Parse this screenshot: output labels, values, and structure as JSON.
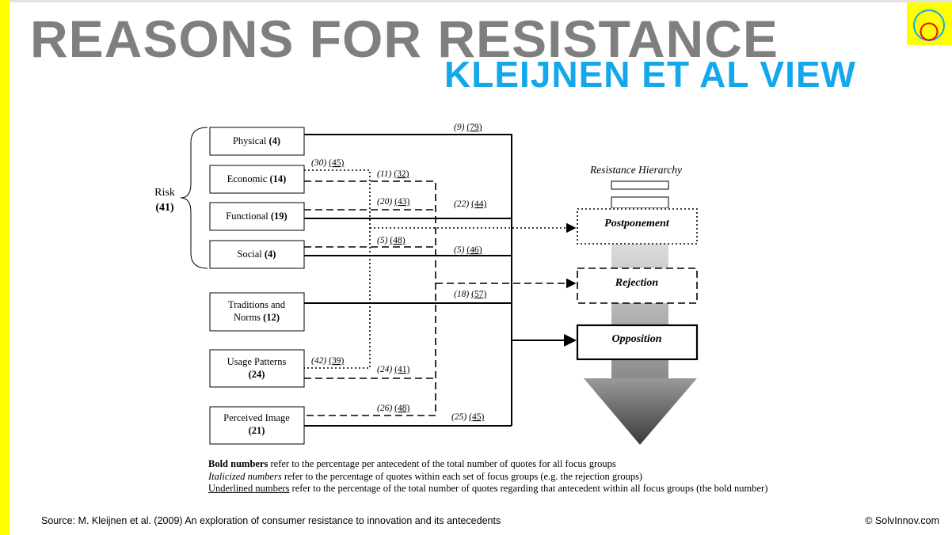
{
  "title": "REASONS FOR RESISTANCE",
  "subtitle": "KLEIJNEN ET AL VIEW",
  "colors": {
    "title": "#7f7f7f",
    "subtitle": "#13a8ec",
    "accent_bar": "#ffff00",
    "logo_outer": "#13a8ec",
    "logo_inner": "#ff0000"
  },
  "logo_icon": "concentric-circles-logo",
  "diagram": {
    "risk_label": "Risk",
    "risk_value": "(41)",
    "antecedents": [
      {
        "name": "Physical",
        "value": "(4)"
      },
      {
        "name": "Economic",
        "value": "(14)"
      },
      {
        "name": "Functional",
        "value": "(19)"
      },
      {
        "name": "Social",
        "value": "(4)"
      },
      {
        "name": "Traditions and",
        "name2": "Norms",
        "value": "(12)"
      },
      {
        "name": "Usage Patterns",
        "value": "(24)"
      },
      {
        "name": "Perceived Image",
        "value": "(21)"
      }
    ],
    "links": [
      {
        "italic": "(9)",
        "underlined": "(79)",
        "from": "Physical",
        "to": "Opposition"
      },
      {
        "italic": "(30)",
        "underlined": "(45)",
        "from": "Economic",
        "to": "Postponement"
      },
      {
        "italic": "(11)",
        "underlined": "(32)",
        "from": "Economic",
        "to": "Rejection"
      },
      {
        "italic": "(20)",
        "underlined": "(43)",
        "from": "Functional",
        "to": "Rejection"
      },
      {
        "italic": "(22)",
        "underlined": "(44)",
        "from": "Functional",
        "to": "Opposition"
      },
      {
        "italic": "(5)",
        "underlined": "(48)",
        "from": "Social",
        "to": "Rejection"
      },
      {
        "italic": "(5)",
        "underlined": "(46)",
        "from": "Social",
        "to": "Opposition"
      },
      {
        "italic": "(18)",
        "underlined": "(57)",
        "from": "Traditions and Norms",
        "to": "Opposition"
      },
      {
        "italic": "(42)",
        "underlined": "(39)",
        "from": "Usage Patterns",
        "to": "Postponement"
      },
      {
        "italic": "(24)",
        "underlined": "(41)",
        "from": "Usage Patterns",
        "to": "Rejection"
      },
      {
        "italic": "(26)",
        "underlined": "(48)",
        "from": "Perceived Image",
        "to": "Rejection"
      },
      {
        "italic": "(25)",
        "underlined": "(45)",
        "from": "Perceived Image",
        "to": "Opposition"
      }
    ],
    "hierarchy_title": "Resistance Hierarchy",
    "outcomes": [
      "Postponement",
      "Rejection",
      "Opposition"
    ]
  },
  "notes": [
    {
      "lead": "Bold numbers",
      "rest": " refer to the percentage per antecedent of the total number of quotes for all focus groups"
    },
    {
      "lead": "Italicized numbers",
      "rest": " refer to the percentage of quotes within each set of focus groups (e.g. the rejection groups)"
    },
    {
      "lead": "Underlined numbers",
      "rest": " refer to the percentage of the total number of quotes regarding that antecedent within all focus groups (the bold number)"
    }
  ],
  "source": "Source: M. Kleijnen et al. (2009) An exploration of consumer resistance to innovation and its antecedents",
  "copyright": "© SolvInnov.com"
}
